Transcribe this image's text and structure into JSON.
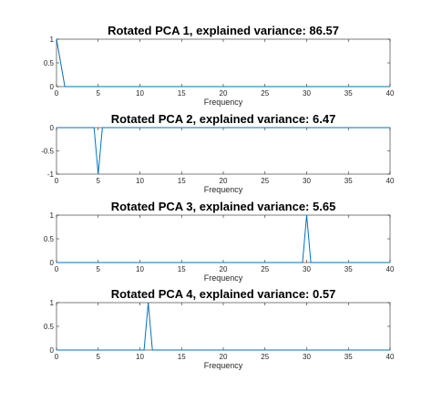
{
  "colors": {
    "line": "#0072BD",
    "axis": "#262626",
    "background": "#ffffff"
  },
  "chart_data": [
    {
      "type": "line",
      "title": "Rotated PCA 1, explained variance: 86.57",
      "xlabel": "Frequency",
      "ylabel": "",
      "xlim": [
        0,
        40
      ],
      "ylim": [
        0,
        1
      ],
      "x_ticks": [
        "0",
        "5",
        "10",
        "15",
        "20",
        "25",
        "30",
        "35",
        "40"
      ],
      "y_ticks": [
        "0",
        "0.5",
        "1"
      ],
      "grid": false,
      "series": [
        {
          "x": [
            0,
            1,
            40
          ],
          "y": [
            1,
            0,
            0
          ]
        }
      ]
    },
    {
      "type": "line",
      "title": "Rotated PCA 2, explained variance: 6.47",
      "xlabel": "Frequency",
      "ylabel": "",
      "xlim": [
        0,
        40
      ],
      "ylim": [
        -1,
        0
      ],
      "x_ticks": [
        "0",
        "5",
        "10",
        "15",
        "20",
        "25",
        "30",
        "35",
        "40"
      ],
      "y_ticks": [
        "-1",
        "-0.5",
        "0"
      ],
      "grid": false,
      "series": [
        {
          "x": [
            0,
            4.5,
            5,
            5.5,
            40
          ],
          "y": [
            0,
            0,
            -1,
            0,
            0
          ]
        }
      ]
    },
    {
      "type": "line",
      "title": "Rotated PCA 3, explained variance: 5.65",
      "xlabel": "Frequency",
      "ylabel": "",
      "xlim": [
        0,
        40
      ],
      "ylim": [
        0,
        1
      ],
      "x_ticks": [
        "0",
        "5",
        "10",
        "15",
        "20",
        "25",
        "30",
        "35",
        "40"
      ],
      "y_ticks": [
        "0",
        "0.5",
        "1"
      ],
      "grid": false,
      "series": [
        {
          "x": [
            0,
            29.5,
            30,
            30.5,
            40
          ],
          "y": [
            0,
            0,
            1,
            0,
            0
          ]
        }
      ]
    },
    {
      "type": "line",
      "title": "Rotated PCA 4, explained variance: 0.57",
      "xlabel": "Frequency",
      "ylabel": "",
      "xlim": [
        0,
        40
      ],
      "ylim": [
        0,
        1
      ],
      "x_ticks": [
        "0",
        "5",
        "10",
        "15",
        "20",
        "25",
        "30",
        "35",
        "40"
      ],
      "y_ticks": [
        "0",
        "0.5",
        "1"
      ],
      "grid": false,
      "series": [
        {
          "x": [
            0,
            10.5,
            11,
            11.5,
            40
          ],
          "y": [
            0,
            0,
            1,
            0,
            0
          ]
        }
      ]
    }
  ]
}
